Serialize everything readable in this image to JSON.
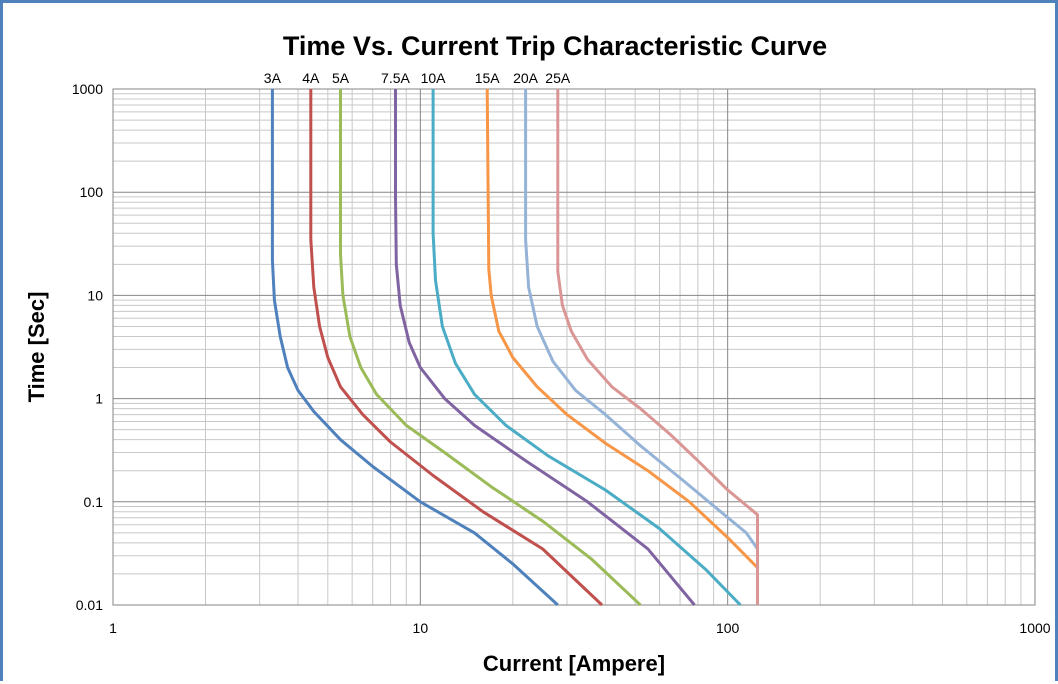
{
  "chart_data": {
    "type": "line",
    "title": "Time Vs. Current Trip Characteristic Curve",
    "xlabel": "Current [Ampere]",
    "ylabel": "Time [Sec]",
    "x_scale": "log",
    "y_scale": "log",
    "xlim": [
      1,
      1000
    ],
    "ylim": [
      0.01,
      1000
    ],
    "x_ticks": [
      "1",
      "10",
      "100",
      "1000"
    ],
    "y_ticks": [
      "1000",
      "100",
      "10",
      "1",
      "0.1",
      "0.01"
    ],
    "grid": true,
    "legend": "series labels above plot",
    "series": [
      {
        "name": "3A",
        "color": "#4f81bd",
        "points": [
          [
            3.3,
            1000
          ],
          [
            3.3,
            22
          ],
          [
            3.35,
            9
          ],
          [
            3.5,
            4
          ],
          [
            3.7,
            2
          ],
          [
            4.0,
            1.2
          ],
          [
            4.5,
            0.75
          ],
          [
            5.5,
            0.4
          ],
          [
            7,
            0.22
          ],
          [
            10,
            0.1
          ],
          [
            15,
            0.05
          ],
          [
            20,
            0.025
          ],
          [
            28,
            0.01
          ]
        ]
      },
      {
        "name": "4A",
        "color": "#c0504d",
        "points": [
          [
            4.4,
            1000
          ],
          [
            4.4,
            35
          ],
          [
            4.5,
            12
          ],
          [
            4.7,
            5
          ],
          [
            5.0,
            2.5
          ],
          [
            5.5,
            1.3
          ],
          [
            6.5,
            0.7
          ],
          [
            8,
            0.38
          ],
          [
            11,
            0.18
          ],
          [
            16,
            0.08
          ],
          [
            25,
            0.035
          ],
          [
            39,
            0.01
          ]
        ]
      },
      {
        "name": "5A",
        "color": "#9bbb59",
        "points": [
          [
            5.5,
            1000
          ],
          [
            5.5,
            25
          ],
          [
            5.6,
            10
          ],
          [
            5.9,
            4
          ],
          [
            6.4,
            2
          ],
          [
            7.2,
            1.1
          ],
          [
            9,
            0.55
          ],
          [
            12,
            0.3
          ],
          [
            17,
            0.14
          ],
          [
            25,
            0.065
          ],
          [
            36,
            0.028
          ],
          [
            52,
            0.01
          ]
        ]
      },
      {
        "name": "7.5A",
        "color": "#8064a2",
        "points": [
          [
            8.3,
            1000
          ],
          [
            8.3,
            90
          ],
          [
            8.35,
            20
          ],
          [
            8.6,
            8
          ],
          [
            9.2,
            3.5
          ],
          [
            10,
            2
          ],
          [
            12,
            1
          ],
          [
            15,
            0.55
          ],
          [
            22,
            0.25
          ],
          [
            35,
            0.1
          ],
          [
            55,
            0.035
          ],
          [
            78,
            0.01
          ]
        ]
      },
      {
        "name": "10A",
        "color": "#4bacc6",
        "points": [
          [
            11,
            1000
          ],
          [
            11,
            40
          ],
          [
            11.2,
            14
          ],
          [
            11.8,
            5
          ],
          [
            13,
            2.2
          ],
          [
            15,
            1.1
          ],
          [
            19,
            0.55
          ],
          [
            26,
            0.28
          ],
          [
            40,
            0.13
          ],
          [
            60,
            0.055
          ],
          [
            85,
            0.022
          ],
          [
            110,
            0.01
          ]
        ]
      },
      {
        "name": "15A",
        "color": "#f79646",
        "points": [
          [
            16.5,
            1000
          ],
          [
            16.7,
            18
          ],
          [
            17,
            10
          ],
          [
            18,
            4.5
          ],
          [
            20,
            2.5
          ],
          [
            24,
            1.3
          ],
          [
            30,
            0.7
          ],
          [
            40,
            0.37
          ],
          [
            55,
            0.2
          ],
          [
            75,
            0.1
          ],
          [
            100,
            0.045
          ],
          [
            125,
            0.023
          ]
        ]
      },
      {
        "name": "20A",
        "color": "#95b3d7",
        "points": [
          [
            22,
            1000
          ],
          [
            22,
            35
          ],
          [
            22.5,
            12
          ],
          [
            24,
            5
          ],
          [
            27,
            2.3
          ],
          [
            32,
            1.2
          ],
          [
            40,
            0.7
          ],
          [
            52,
            0.35
          ],
          [
            70,
            0.17
          ],
          [
            95,
            0.08
          ],
          [
            115,
            0.05
          ],
          [
            125,
            0.035
          ]
        ]
      },
      {
        "name": "25A",
        "color": "#d99694",
        "points": [
          [
            28,
            1000
          ],
          [
            28,
            17
          ],
          [
            29,
            8
          ],
          [
            31,
            4.5
          ],
          [
            35,
            2.4
          ],
          [
            42,
            1.3
          ],
          [
            52,
            0.8
          ],
          [
            65,
            0.45
          ],
          [
            80,
            0.25
          ],
          [
            100,
            0.13
          ],
          [
            125,
            0.075
          ],
          [
            125,
            0.01
          ]
        ]
      }
    ]
  }
}
